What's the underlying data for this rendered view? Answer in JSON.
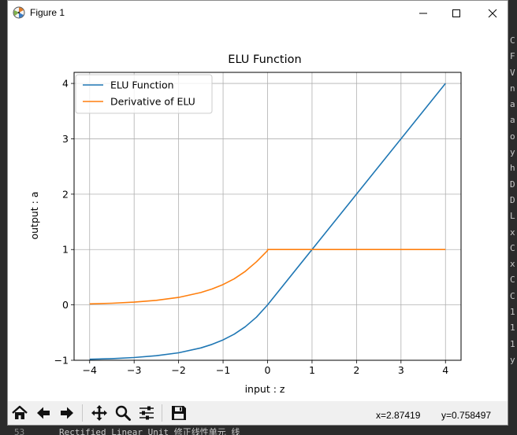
{
  "window": {
    "title": "Figure 1"
  },
  "background": {
    "right_chars": [
      "C",
      "F",
      "V",
      "n",
      "a",
      "a",
      "o",
      "y",
      "h",
      "D",
      "D",
      "L",
      "x",
      "C",
      "x",
      "C",
      "C",
      "1",
      "1",
      "1",
      "y"
    ],
    "bottom_line_no": "53",
    "bottom_text": "Rectified Linear Unit  修正线性单元  线"
  },
  "toolbar": {
    "home": "home-icon",
    "back": "arrow-left-icon",
    "forward": "arrow-right-icon",
    "pan": "move-icon",
    "zoom": "magnifier-icon",
    "configure": "sliders-icon",
    "save": "floppy-disk-icon",
    "x_readout": "x=2.87419",
    "y_readout": "y=0.758497"
  },
  "colors": {
    "elu": "#1f77b4",
    "derivative": "#ff7f0e",
    "grid": "#b0b0b0"
  },
  "chart_data": {
    "type": "line",
    "title": "ELU Function",
    "xlabel": "input : z",
    "ylabel": "output : a",
    "xlim": [
      -4.35,
      4.35
    ],
    "ylim": [
      -1.0,
      4.2
    ],
    "xticks": [
      -4,
      -3,
      -2,
      -1,
      0,
      1,
      2,
      3,
      4
    ],
    "yticks": [
      -1,
      0,
      1,
      2,
      3,
      4
    ],
    "grid": true,
    "legend_position": "top-left",
    "series": [
      {
        "name": "ELU Function",
        "color": "#1f77b4",
        "x": [
          -4,
          -3.5,
          -3,
          -2.5,
          -2,
          -1.5,
          -1.25,
          -1,
          -0.75,
          -0.5,
          -0.25,
          0,
          1,
          2,
          3,
          4
        ],
        "y": [
          -0.982,
          -0.97,
          -0.95,
          -0.918,
          -0.865,
          -0.777,
          -0.713,
          -0.632,
          -0.528,
          -0.393,
          -0.221,
          0,
          1,
          2,
          3,
          4
        ]
      },
      {
        "name": "Derivative of ELU",
        "color": "#ff7f0e",
        "x": [
          -4,
          -3.5,
          -3,
          -2.5,
          -2,
          -1.5,
          -1.25,
          -1,
          -0.75,
          -0.5,
          -0.25,
          0,
          0,
          1,
          2,
          3,
          4
        ],
        "y": [
          0.018,
          0.03,
          0.05,
          0.082,
          0.135,
          0.223,
          0.287,
          0.368,
          0.472,
          0.607,
          0.779,
          0.98,
          1,
          1,
          1,
          1,
          1
        ]
      }
    ]
  }
}
